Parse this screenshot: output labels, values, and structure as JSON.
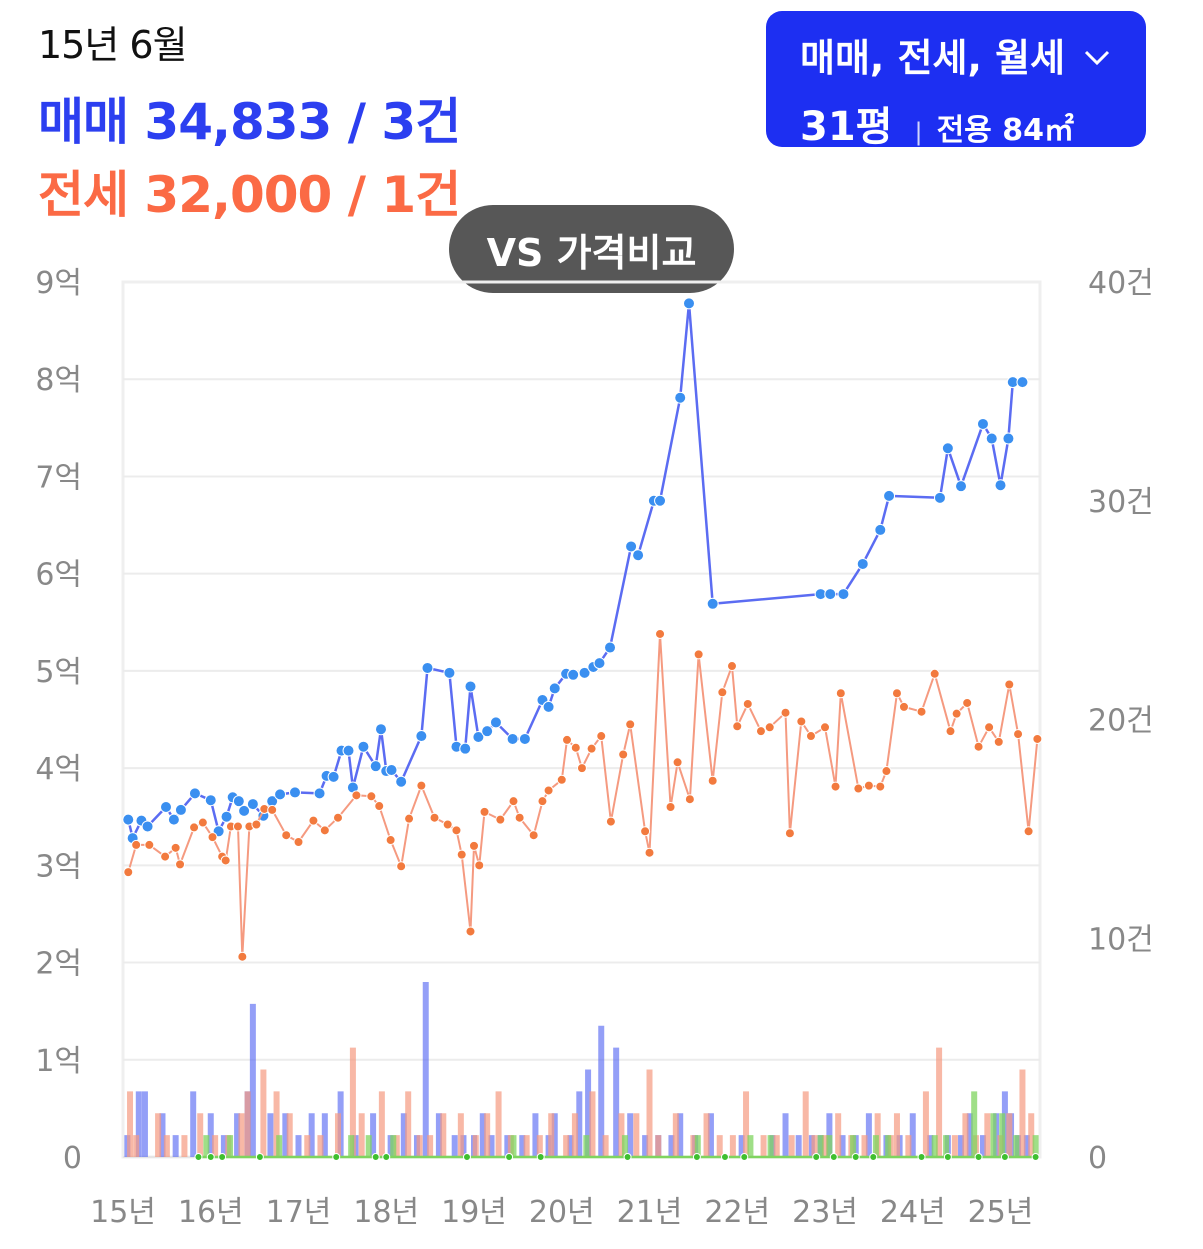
{
  "header": {
    "month": "15년 6월",
    "sale_line": "매매 34,833 / 3건",
    "jeonse_line": "전세 32,000 / 1건"
  },
  "filter": {
    "type_label": "매매, 전세, 월세",
    "pyeong": "31평",
    "area": "전용 84㎡",
    "chevron_icon": "chevron-down-icon"
  },
  "compare_button": {
    "label": "VS 가격비교"
  },
  "colors": {
    "sale": "#5b6cf2",
    "sale_point": "#3a8ff0",
    "jeonse": "#f59a80",
    "jeonse_point": "#f27a3e",
    "monthly": "#7fd45f",
    "accent": "#1d2ff2"
  },
  "chart_data": {
    "type": "line",
    "x_tick_labels": [
      "15년",
      "16년",
      "17년",
      "18년",
      "19년",
      "20년",
      "21년",
      "22년",
      "23년",
      "24년",
      "25년"
    ],
    "y_left_tick_labels": [
      "0",
      "1억",
      "2억",
      "3억",
      "4억",
      "5억",
      "6억",
      "7억",
      "8억",
      "9억"
    ],
    "y_left_range": [
      0,
      9
    ],
    "y_right_tick_labels": [
      "0",
      "10건",
      "20건",
      "30건",
      "40건"
    ],
    "y_right_range": [
      0,
      40
    ],
    "grid": true,
    "series": [
      {
        "name": "매매",
        "x": [
          2015.06,
          2015.11,
          2015.21,
          2015.28,
          2015.49,
          2015.58,
          2015.66,
          2015.82,
          2016.0,
          2016.09,
          2016.18,
          2016.25,
          2016.32,
          2016.38,
          2016.48,
          2016.6,
          2016.7,
          2016.79,
          2016.96,
          2017.24,
          2017.32,
          2017.4,
          2017.49,
          2017.57,
          2017.62,
          2017.74,
          2017.88,
          2017.94,
          2018.0,
          2018.06,
          2018.17,
          2018.4,
          2018.47,
          2018.72,
          2018.8,
          2018.9,
          2018.96,
          2019.05,
          2019.15,
          2019.25,
          2019.44,
          2019.58,
          2019.78,
          2019.85,
          2019.92,
          2020.05,
          2020.13,
          2020.26,
          2020.36,
          2020.43,
          2020.55,
          2020.79,
          2020.87,
          2021.05,
          2021.12,
          2021.35,
          2021.45,
          2021.72,
          2022.95,
          2023.06,
          2023.21,
          2023.43,
          2023.63,
          2023.73,
          2024.31,
          2024.4,
          2024.55,
          2024.8,
          2024.9,
          2025.0,
          2025.09,
          2025.14,
          2025.25
        ],
        "values": [
          3.47,
          3.28,
          3.46,
          3.4,
          3.6,
          3.47,
          3.57,
          3.74,
          3.67,
          3.35,
          3.5,
          3.7,
          3.66,
          3.56,
          3.63,
          3.51,
          3.66,
          3.73,
          3.75,
          3.74,
          3.92,
          3.91,
          4.18,
          4.18,
          3.8,
          4.22,
          4.02,
          4.4,
          3.97,
          3.98,
          3.86,
          4.33,
          5.03,
          4.98,
          4.22,
          4.2,
          4.84,
          4.32,
          4.38,
          4.47,
          4.3,
          4.3,
          4.7,
          4.63,
          4.82,
          4.97,
          4.96,
          4.98,
          5.04,
          5.08,
          5.24,
          6.28,
          6.19,
          6.75,
          6.75,
          7.81,
          8.78,
          5.69,
          5.79,
          5.79,
          5.79,
          6.1,
          6.45,
          6.8,
          6.78,
          7.29,
          6.9,
          7.54,
          7.39,
          6.91,
          7.39,
          7.97,
          7.97
        ]
      },
      {
        "name": "전세",
        "x": [
          2015.06,
          2015.15,
          2015.3,
          2015.48,
          2015.6,
          2015.65,
          2015.81,
          2015.91,
          2016.02,
          2016.13,
          2016.17,
          2016.23,
          2016.31,
          2016.36,
          2016.44,
          2016.52,
          2016.61,
          2016.7,
          2016.86,
          2017.0,
          2017.17,
          2017.3,
          2017.45,
          2017.66,
          2017.83,
          2017.92,
          2018.05,
          2018.17,
          2018.26,
          2018.4,
          2018.55,
          2018.7,
          2018.8,
          2018.86,
          2018.96,
          2019.0,
          2019.06,
          2019.12,
          2019.3,
          2019.45,
          2019.52,
          2019.68,
          2019.78,
          2019.85,
          2020.0,
          2020.06,
          2020.16,
          2020.23,
          2020.34,
          2020.45,
          2020.56,
          2020.7,
          2020.78,
          2020.95,
          2021.0,
          2021.12,
          2021.24,
          2021.32,
          2021.46,
          2021.56,
          2021.72,
          2021.83,
          2021.94,
          2022.0,
          2022.12,
          2022.27,
          2022.37,
          2022.55,
          2022.6,
          2022.73,
          2022.84,
          2023.0,
          2023.12,
          2023.18,
          2023.38,
          2023.5,
          2023.63,
          2023.7,
          2023.82,
          2023.9,
          2024.1,
          2024.25,
          2024.43,
          2024.5,
          2024.62,
          2024.75,
          2024.87,
          2024.98,
          2025.1,
          2025.2,
          2025.32,
          2025.42
        ],
        "values": [
          2.93,
          3.21,
          3.21,
          3.09,
          3.18,
          3.01,
          3.39,
          3.44,
          3.29,
          3.09,
          3.05,
          3.4,
          3.4,
          2.06,
          3.4,
          3.42,
          3.58,
          3.57,
          3.31,
          3.24,
          3.46,
          3.36,
          3.49,
          3.72,
          3.71,
          3.61,
          3.26,
          2.99,
          3.48,
          3.82,
          3.49,
          3.42,
          3.36,
          3.11,
          2.32,
          3.2,
          3.0,
          3.55,
          3.47,
          3.66,
          3.49,
          3.31,
          3.66,
          3.77,
          3.88,
          4.29,
          4.21,
          4.0,
          4.2,
          4.33,
          3.45,
          4.14,
          4.45,
          3.35,
          3.13,
          5.38,
          3.6,
          4.06,
          3.68,
          5.17,
          3.87,
          4.78,
          5.05,
          4.43,
          4.66,
          4.38,
          4.42,
          4.57,
          3.33,
          4.48,
          4.33,
          4.42,
          3.81,
          4.77,
          3.79,
          3.82,
          3.81,
          3.97,
          4.77,
          4.63,
          4.58,
          4.97,
          4.38,
          4.56,
          4.67,
          4.22,
          4.42,
          4.27,
          4.86,
          4.35,
          3.35,
          4.3
        ]
      },
      {
        "name": "월세",
        "x": [
          2015.86,
          2016.0,
          2016.13,
          2016.56,
          2017.43,
          2017.88,
          2018.0,
          2018.92,
          2019.4,
          2019.76,
          2020.75,
          2021.54,
          2021.86,
          2022.08,
          2022.9,
          2023.1,
          2023.35,
          2023.55,
          2024.1,
          2024.4,
          2024.75,
          2025.05,
          2025.4
        ],
        "values": [
          0,
          0,
          0,
          0,
          0,
          0,
          0,
          0,
          0,
          0,
          0,
          0,
          0,
          0,
          0,
          0,
          0,
          0,
          0,
          0,
          0,
          0,
          0
        ]
      }
    ],
    "volume_bars": {
      "sale": {
        "x": [
          2015.05,
          2015.18,
          2015.25,
          2015.45,
          2015.6,
          2015.8,
          2016.0,
          2016.15,
          2016.3,
          2016.42,
          2016.48,
          2016.68,
          2016.85,
          2017.0,
          2017.15,
          2017.3,
          2017.48,
          2017.65,
          2017.85,
          2018.05,
          2018.2,
          2018.35,
          2018.45,
          2018.6,
          2018.78,
          2018.88,
          2019.0,
          2019.1,
          2019.2,
          2019.38,
          2019.55,
          2019.7,
          2019.85,
          2019.92,
          2020.1,
          2020.2,
          2020.3,
          2020.45,
          2020.62,
          2020.78,
          2020.95,
          2021.1,
          2021.25,
          2021.35,
          2021.52,
          2021.7,
          2022.05,
          2022.4,
          2022.55,
          2022.7,
          2022.85,
          2022.95,
          2023.05,
          2023.2,
          2023.35,
          2023.5,
          2023.7,
          2023.85,
          2024.0,
          2024.2,
          2024.4,
          2024.55,
          2024.65,
          2024.8,
          2024.95,
          2025.05,
          2025.12,
          2025.2,
          2025.3
        ],
        "values": [
          1,
          3,
          3,
          2,
          1,
          3,
          2,
          1,
          2,
          3,
          7,
          2,
          2,
          1,
          2,
          2,
          3,
          1,
          2,
          1,
          2,
          1,
          8,
          2,
          1,
          1,
          1,
          2,
          1,
          1,
          1,
          2,
          1,
          2,
          1,
          3,
          4,
          6,
          5,
          2,
          1,
          1,
          1,
          2,
          1,
          2,
          1,
          1,
          2,
          1,
          1,
          1,
          2,
          1,
          1,
          2,
          1,
          1,
          2,
          1,
          1,
          1,
          2,
          1,
          2,
          3,
          2,
          1,
          1
        ]
      },
      "jeonse": {
        "x": [
          2015.08,
          2015.15,
          2015.4,
          2015.5,
          2015.7,
          2015.88,
          2016.05,
          2016.2,
          2016.35,
          2016.42,
          2016.6,
          2016.75,
          2016.9,
          2017.1,
          2017.25,
          2017.45,
          2017.62,
          2017.72,
          2017.95,
          2018.12,
          2018.25,
          2018.38,
          2018.5,
          2018.65,
          2018.85,
          2019.02,
          2019.15,
          2019.28,
          2019.42,
          2019.6,
          2019.75,
          2019.88,
          2020.05,
          2020.15,
          2020.35,
          2020.5,
          2020.68,
          2020.85,
          2021.0,
          2021.1,
          2021.3,
          2021.5,
          2021.65,
          2021.8,
          2021.95,
          2022.1,
          2022.3,
          2022.45,
          2022.62,
          2022.78,
          2022.88,
          2023.0,
          2023.15,
          2023.3,
          2023.45,
          2023.6,
          2023.75,
          2023.82,
          2023.95,
          2024.15,
          2024.3,
          2024.48,
          2024.6,
          2024.72,
          2024.85,
          2025.0,
          2025.1,
          2025.25,
          2025.35
        ],
        "values": [
          3,
          1,
          2,
          1,
          1,
          2,
          1,
          1,
          2,
          3,
          4,
          3,
          2,
          1,
          1,
          2,
          5,
          2,
          3,
          1,
          3,
          1,
          1,
          2,
          2,
          1,
          2,
          3,
          1,
          1,
          1,
          2,
          1,
          2,
          3,
          1,
          2,
          2,
          4,
          1,
          2,
          1,
          2,
          1,
          1,
          3,
          1,
          1,
          1,
          3,
          1,
          1,
          2,
          1,
          1,
          2,
          1,
          2,
          1,
          3,
          5,
          1,
          2,
          1,
          2,
          1,
          2,
          4,
          2
        ]
      },
      "monthly": {
        "x": [
          2015.95,
          2016.22,
          2016.78,
          2017.6,
          2017.8,
          2018.08,
          2019.45,
          2020.28,
          2020.72,
          2021.55,
          2022.15,
          2022.38,
          2022.95,
          2023.05,
          2023.32,
          2023.58,
          2023.72,
          2024.25,
          2024.38,
          2024.7,
          2024.92,
          2025.02,
          2025.18,
          2025.4
        ],
        "values": [
          1,
          1,
          1,
          1,
          1,
          1,
          1,
          1,
          1,
          1,
          1,
          1,
          1,
          1,
          1,
          1,
          1,
          1,
          1,
          3,
          2,
          2,
          1,
          1
        ]
      }
    }
  }
}
